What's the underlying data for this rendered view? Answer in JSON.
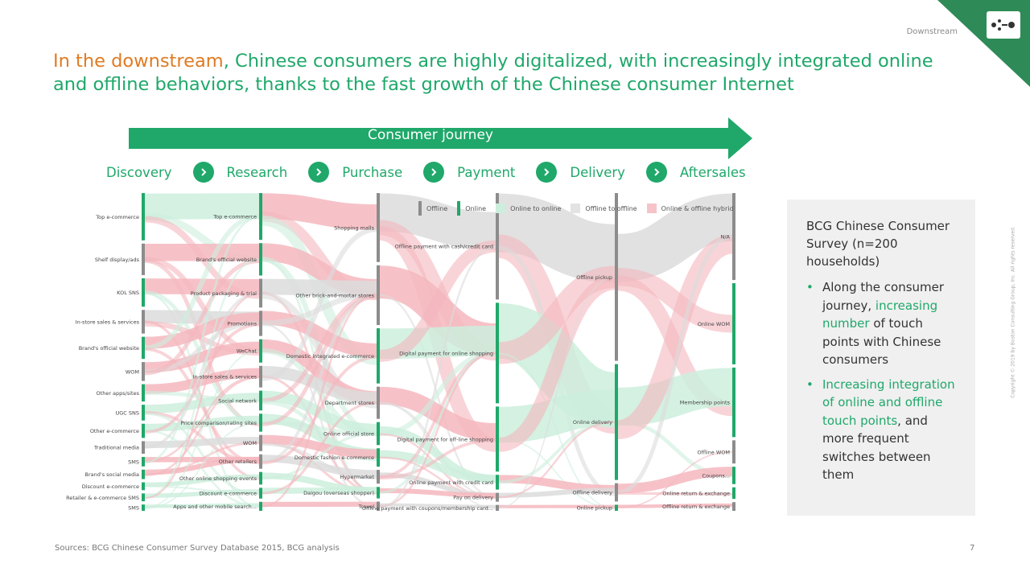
{
  "header": {
    "section": "Downstream",
    "title_highlight": "In the downstream",
    "title_rest": ", Chinese consumers are highly digitalized, with increasingly integrated online and offline behaviors, thanks to the fast growth of the Chinese consumer Internet"
  },
  "journey": {
    "label": "Consumer journey",
    "stages": [
      "Discovery",
      "Research",
      "Purchase",
      "Payment",
      "Delivery",
      "Aftersales"
    ]
  },
  "legend": [
    {
      "label": "Offline",
      "kind": "bar",
      "color": "#8c8c8c"
    },
    {
      "label": "Online",
      "kind": "bar",
      "color": "#1fa86a"
    },
    {
      "label": "Online to online",
      "kind": "box",
      "color": "#cdeedd"
    },
    {
      "label": "Offline to offline",
      "kind": "box",
      "color": "#e3e3e3"
    },
    {
      "label": "Online & offline hybrid",
      "kind": "box",
      "color": "#f6c3c8"
    }
  ],
  "colors": {
    "green": "#1fa86a",
    "orange": "#e07b23",
    "offline_node": "#8c8c8c",
    "flow_online": "#cdeedd",
    "flow_offline": "#dcdcdc",
    "flow_hybrid": "#f4b7be"
  },
  "diagram": {
    "columns": [
      {
        "stage": "Discovery",
        "nodes": [
          {
            "label": "Top e-commerce",
            "type": "online",
            "weight": 30
          },
          {
            "label": "Shelf display/ads",
            "type": "offline",
            "weight": 20
          },
          {
            "label": "KOL SNS",
            "type": "online",
            "weight": 18
          },
          {
            "label": "In-store sales & services",
            "type": "offline",
            "weight": 15
          },
          {
            "label": "Brand's official website",
            "type": "online",
            "weight": 14
          },
          {
            "label": "WOM",
            "type": "offline",
            "weight": 12
          },
          {
            "label": "Other apps/sites",
            "type": "online",
            "weight": 11
          },
          {
            "label": "UGC SNS",
            "type": "online",
            "weight": 10
          },
          {
            "label": "Other e-commerce",
            "type": "online",
            "weight": 9
          },
          {
            "label": "Traditional media",
            "type": "offline",
            "weight": 8
          },
          {
            "label": "SMS",
            "type": "online",
            "weight": 6
          },
          {
            "label": "Brand's social media",
            "type": "online",
            "weight": 6
          },
          {
            "label": "Discount e-commerce",
            "type": "online",
            "weight": 5
          },
          {
            "label": "Retailer & e-commerce SMS",
            "type": "online",
            "weight": 5
          },
          {
            "label": "SMS",
            "type": "online",
            "weight": 4
          }
        ]
      },
      {
        "stage": "Research",
        "nodes": [
          {
            "label": "Top e-commerce",
            "type": "online",
            "weight": 26
          },
          {
            "label": "Brand's official website",
            "type": "online",
            "weight": 18
          },
          {
            "label": "Product packaging & trial",
            "type": "offline",
            "weight": 16
          },
          {
            "label": "Promotions",
            "type": "offline",
            "weight": 14
          },
          {
            "label": "WeChat",
            "type": "online",
            "weight": 13
          },
          {
            "label": "In-store sales & services",
            "type": "offline",
            "weight": 12
          },
          {
            "label": "Social network",
            "type": "online",
            "weight": 11
          },
          {
            "label": "Price comparison/rating sites",
            "type": "online",
            "weight": 10
          },
          {
            "label": "WOM",
            "type": "offline",
            "weight": 9
          },
          {
            "label": "Other retailers",
            "type": "offline",
            "weight": 8
          },
          {
            "label": "Other online shopping events",
            "type": "online",
            "weight": 7
          },
          {
            "label": "Discount e-commerce",
            "type": "online",
            "weight": 6
          },
          {
            "label": "Apps and other mobile search...",
            "type": "online",
            "weight": 5
          }
        ]
      },
      {
        "stage": "Purchase",
        "nodes": [
          {
            "label": "Shopping malls",
            "type": "offline",
            "weight": 30
          },
          {
            "label": "Other brick-and-mortar stores",
            "type": "offline",
            "weight": 26
          },
          {
            "label": "Domestic integrated e-commerce",
            "type": "online",
            "weight": 24
          },
          {
            "label": "Department stores",
            "type": "offline",
            "weight": 14
          },
          {
            "label": "Online official store",
            "type": "online",
            "weight": 10
          },
          {
            "label": "Domestic fashion e-commerce",
            "type": "online",
            "weight": 8
          },
          {
            "label": "Hypermarket",
            "type": "offline",
            "weight": 6
          },
          {
            "label": "Daigou (overseas shopper)",
            "type": "online",
            "weight": 5
          },
          {
            "label": "Travel",
            "type": "offline",
            "weight": 4
          }
        ]
      },
      {
        "stage": "Payment",
        "nodes": [
          {
            "label": "Offline payment with cash/credit card",
            "type": "offline",
            "weight": 36
          },
          {
            "label": "Digital payment for online shopping",
            "type": "online",
            "weight": 34
          },
          {
            "label": "Digital payment for off-line shopping",
            "type": "online",
            "weight": 22
          },
          {
            "label": "Online payment with credit card",
            "type": "online",
            "weight": 5
          },
          {
            "label": "Pay on delivery",
            "type": "offline",
            "weight": 3
          },
          {
            "label": "Offline payment with coupons/membership card...",
            "type": "offline",
            "weight": 2
          }
        ]
      },
      {
        "stage": "Delivery",
        "nodes": [
          {
            "label": "Offline pickup",
            "type": "offline",
            "weight": 55
          },
          {
            "label": "Online delivery",
            "type": "online",
            "weight": 38
          },
          {
            "label": "Offline delivery",
            "type": "offline",
            "weight": 6
          },
          {
            "label": "Online pickup",
            "type": "online",
            "weight": 2
          }
        ]
      },
      {
        "stage": "Aftersales",
        "nodes": [
          {
            "label": "N/A",
            "type": "offline",
            "weight": 30
          },
          {
            "label": "Online WOM",
            "type": "online",
            "weight": 28
          },
          {
            "label": "Membership points",
            "type": "online",
            "weight": 24
          },
          {
            "label": "Offline WOM",
            "type": "offline",
            "weight": 8
          },
          {
            "label": "Coupons...",
            "type": "online",
            "weight": 6
          },
          {
            "label": "Online return & exchange",
            "type": "online",
            "weight": 4
          },
          {
            "label": "Offline return & exchange",
            "type": "offline",
            "weight": 3
          }
        ]
      }
    ]
  },
  "survey": {
    "title": "BCG Chinese Consumer Survey (n=200 households)",
    "bullet1_pre": "Along the consumer journey, ",
    "bullet1_hl": "increasing number",
    "bullet1_post": " of touch points with Chinese consumers",
    "bullet2_hl": "Increasing integration of online and offline touch points",
    "bullet2_post": ", and more frequent switches between them",
    "bullet_glyph": "•"
  },
  "footer": {
    "sources": "Sources: BCG Chinese Consumer Survey Database 2015, BCG analysis",
    "page_number": "7",
    "copyright": "Copyright © 2019 by Boston Consulting Group, Inc. All rights reserved."
  }
}
